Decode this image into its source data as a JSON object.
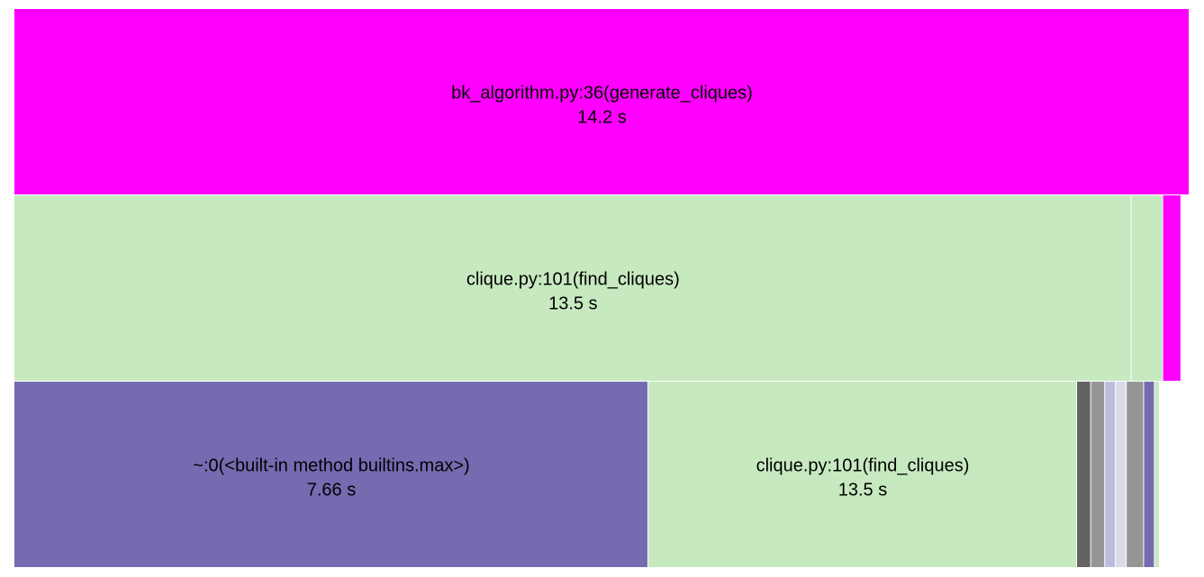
{
  "chart_data": {
    "type": "icicle",
    "unit": "s",
    "levels": [
      [
        {
          "label": "bk_algorithm.py:36(generate_cliques)",
          "time": "14.2 s",
          "value": 14.2,
          "color": "#ff00ff",
          "show_label": true
        }
      ],
      [
        {
          "label": "clique.py:101(find_cliques)",
          "time": "13.5 s",
          "value": 13.5,
          "color": "#c7e9c0",
          "show_label": true
        },
        {
          "label": "",
          "time": "",
          "value": 0.38,
          "color": "#c7e9c0",
          "show_label": false
        },
        {
          "label": "",
          "time": "",
          "value": 0.22,
          "color": "#ff00ff",
          "show_label": false
        }
      ],
      [
        {
          "label": "~:0(<built-in method builtins.max>)",
          "time": "7.66 s",
          "value": 7.66,
          "color": "#756bb1",
          "show_label": true
        },
        {
          "label": "clique.py:101(find_cliques)",
          "time": "13.5 s",
          "value": 5.18,
          "color": "#c7e9c0",
          "show_label": true
        },
        {
          "label": "",
          "time": "",
          "value": 0.17,
          "color": "#636363",
          "show_label": false
        },
        {
          "label": "",
          "time": "",
          "value": 0.17,
          "color": "#969696",
          "show_label": false
        },
        {
          "label": "",
          "time": "",
          "value": 0.13,
          "color": "#bcbddc",
          "show_label": false
        },
        {
          "label": "",
          "time": "",
          "value": 0.13,
          "color": "#dadaeb",
          "show_label": false
        },
        {
          "label": "",
          "time": "",
          "value": 0.21,
          "color": "#969696",
          "show_label": false
        },
        {
          "label": "",
          "time": "",
          "value": 0.13,
          "color": "#756bb1",
          "show_label": false
        },
        {
          "label": "",
          "time": "",
          "value": 0.06,
          "color": "#c7e9c0",
          "show_label": false
        }
      ]
    ]
  }
}
